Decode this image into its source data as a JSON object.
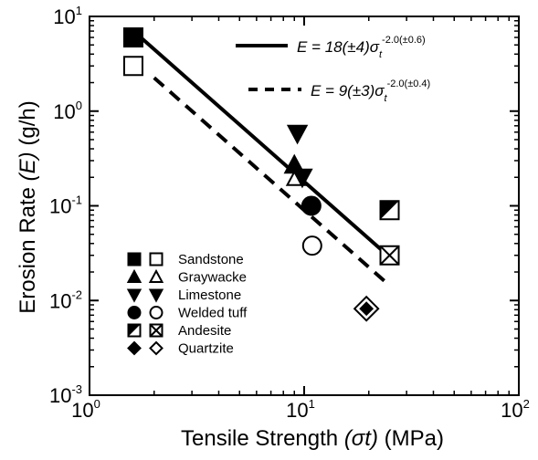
{
  "chart_data": {
    "type": "scatter",
    "xlabel": "Tensile Strength",
    "xlabel_symbol": "(σt)",
    "xlabel_unit": "(MPa)",
    "ylabel": "Erosion Rate",
    "ylabel_symbol": "(E)",
    "ylabel_unit": "(g/h)",
    "xscale": "log",
    "yscale": "log",
    "xlim": [
      1,
      100
    ],
    "ylim": [
      0.001,
      10
    ],
    "x_ticks": [
      {
        "base": "10",
        "exp": "0"
      },
      {
        "base": "10",
        "exp": "1"
      },
      {
        "base": "10",
        "exp": "2"
      }
    ],
    "y_ticks": [
      {
        "base": "10",
        "exp": "-3"
      },
      {
        "base": "10",
        "exp": "-2"
      },
      {
        "base": "10",
        "exp": "-1"
      },
      {
        "base": "10",
        "exp": "0"
      },
      {
        "base": "10",
        "exp": "1"
      }
    ],
    "grid": false,
    "legend_placement": "bottom-left",
    "series": [
      {
        "name": "Sandstone",
        "filled_marker": "square-filled",
        "open_marker": "square-open",
        "filled": [
          {
            "x": 1.6,
            "y": 6.0
          }
        ],
        "open": [
          {
            "x": 1.6,
            "y": 3.0
          }
        ]
      },
      {
        "name": "Graywacke",
        "filled_marker": "triangle-up-filled",
        "open_marker": "triangle-up-open",
        "filled": [
          {
            "x": 9.0,
            "y": 0.27
          }
        ],
        "open": [
          {
            "x": 9.2,
            "y": 0.2
          }
        ]
      },
      {
        "name": "Limestone",
        "filled_marker": "triangle-down-filled",
        "open_marker": "triangle-down-filled",
        "filled": [
          {
            "x": 9.3,
            "y": 0.58
          }
        ],
        "open": [
          {
            "x": 9.8,
            "y": 0.2
          }
        ]
      },
      {
        "name": "Welded tuff",
        "filled_marker": "circle-filled",
        "open_marker": "circle-open",
        "filled": [
          {
            "x": 10.8,
            "y": 0.1
          }
        ],
        "open": [
          {
            "x": 10.9,
            "y": 0.038
          }
        ]
      },
      {
        "name": "Andesite",
        "filled_marker": "square-half",
        "open_marker": "square-cross",
        "filled": [
          {
            "x": 25.0,
            "y": 0.09
          }
        ],
        "open": [
          {
            "x": 25.0,
            "y": 0.03
          }
        ]
      },
      {
        "name": "Quartzite",
        "filled_marker": "diamond-filled",
        "open_marker": "diamond-open",
        "filled": [
          {
            "x": 19.5,
            "y": 0.0082
          }
        ],
        "open": [
          {
            "x": 19.5,
            "y": 0.0082
          }
        ]
      }
    ],
    "fit_lines": [
      {
        "style": "solid",
        "equation_prefix": "E = 18(±4)σ",
        "subscript": "t",
        "exponent": "-2.0(±0.6)",
        "coefficient": 18,
        "power": -2.0,
        "x_range": [
          1.6,
          25
        ]
      },
      {
        "style": "dashed",
        "equation_prefix": "E = 9(±3)σ",
        "subscript": "t",
        "exponent": "-2.0(±0.4)",
        "coefficient": 9,
        "power": -2.0,
        "x_range": [
          2.0,
          25
        ]
      }
    ]
  }
}
